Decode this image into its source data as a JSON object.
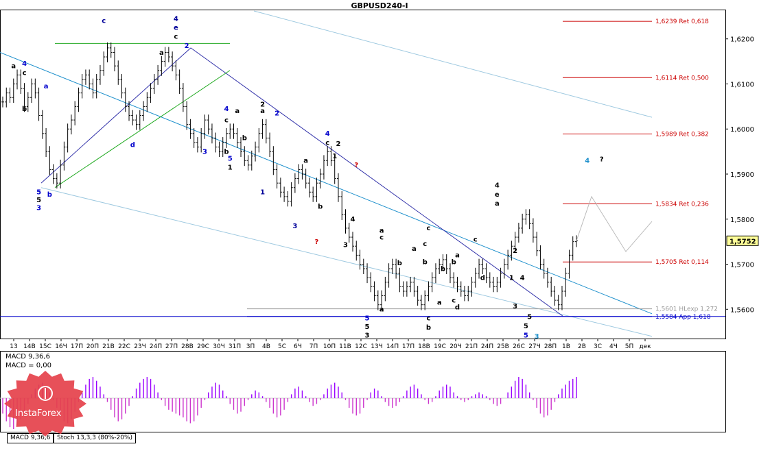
{
  "title": "GBPUSD240-I",
  "chart_data": {
    "type": "line",
    "symbol": "GBPUSD240-I",
    "timeframe": "H4",
    "last_price": "1,5752",
    "ylim": [
      1.5535,
      1.6265
    ],
    "y_ticks": [
      "1,6200",
      "1,6100",
      "1,6000",
      "1,5900",
      "1,5800",
      "1,5700",
      "1,5600"
    ],
    "x_ticks": [
      "13",
      "14В",
      "15С",
      "16Ч",
      "17П",
      "20П",
      "21В",
      "22С",
      "23Ч",
      "24П",
      "27П",
      "28В",
      "29С",
      "30Ч",
      "31П",
      "3П",
      "4В",
      "5С",
      "6Ч",
      "7П",
      "10П",
      "11В",
      "12С",
      "13Ч",
      "14П",
      "17П",
      "18В",
      "19С",
      "20Ч",
      "21П",
      "24П",
      "25В",
      "26С",
      "27Ч",
      "28П",
      "1В",
      "2В",
      "3С",
      "4Ч",
      "5П",
      "дек"
    ],
    "price_bars": [
      1.606,
      1.608,
      1.607,
      1.61,
      1.612,
      1.609,
      1.605,
      1.607,
      1.61,
      1.608,
      1.603,
      1.599,
      1.595,
      1.591,
      1.589,
      1.588,
      1.592,
      1.596,
      1.6,
      1.602,
      1.605,
      1.608,
      1.611,
      1.612,
      1.61,
      1.608,
      1.611,
      1.613,
      1.616,
      1.618,
      1.617,
      1.614,
      1.611,
      1.608,
      1.605,
      1.603,
      1.602,
      1.601,
      1.603,
      1.605,
      1.607,
      1.609,
      1.611,
      1.613,
      1.615,
      1.617,
      1.616,
      1.614,
      1.612,
      1.609,
      1.605,
      1.601,
      1.599,
      1.597,
      1.596,
      1.599,
      1.602,
      1.6,
      1.598,
      1.596,
      1.595,
      1.597,
      1.599,
      1.6,
      1.599,
      1.597,
      1.595,
      1.593,
      1.592,
      1.594,
      1.596,
      1.599,
      1.601,
      1.598,
      1.595,
      1.591,
      1.588,
      1.586,
      1.585,
      1.584,
      1.587,
      1.589,
      1.591,
      1.59,
      1.588,
      1.586,
      1.585,
      1.588,
      1.59,
      1.593,
      1.595,
      1.593,
      1.589,
      1.585,
      1.581,
      1.578,
      1.576,
      1.574,
      1.572,
      1.57,
      1.569,
      1.567,
      1.565,
      1.563,
      1.561,
      1.563,
      1.566,
      1.569,
      1.57,
      1.568,
      1.565,
      1.564,
      1.565,
      1.566,
      1.564,
      1.562,
      1.561,
      1.563,
      1.565,
      1.567,
      1.569,
      1.57,
      1.571,
      1.569,
      1.567,
      1.566,
      1.565,
      1.564,
      1.563,
      1.564,
      1.566,
      1.568,
      1.57,
      1.569,
      1.567,
      1.566,
      1.565,
      1.566,
      1.568,
      1.57,
      1.572,
      1.574,
      1.576,
      1.578,
      1.58,
      1.581,
      1.579,
      1.576,
      1.573,
      1.57,
      1.568,
      1.566,
      1.564,
      1.562,
      1.561,
      1.564,
      1.568,
      1.572,
      1.575,
      1.5752
    ],
    "macd_values": [
      -0.0008,
      -0.0012,
      -0.0015,
      -0.0016,
      -0.0014,
      -0.0011,
      -0.0007,
      -0.0003,
      0.0002,
      0.0005,
      0.0007,
      0.0008,
      0.0006,
      0.0003,
      -0.0001,
      -0.0005,
      -0.0009,
      -0.0012,
      -0.0013,
      -0.0011,
      -0.0007,
      -0.0002,
      0.0003,
      0.0007,
      0.001,
      0.0011,
      0.0009,
      0.0006,
      0.0002,
      -0.0002,
      -0.0006,
      -0.001,
      -0.0012,
      -0.0011,
      -0.0008,
      -0.0004,
      0.0001,
      0.0005,
      0.0008,
      0.001,
      0.0011,
      0.001,
      0.0007,
      0.0003,
      -0.0001,
      -0.0004,
      -0.0006,
      -0.0007,
      -0.0008,
      -0.0009,
      -0.001,
      -0.0012,
      -0.0013,
      -0.0012,
      -0.0009,
      -0.0005,
      -0.0001,
      0.0003,
      0.0006,
      0.0008,
      0.0007,
      0.0004,
      0.0001,
      -0.0003,
      -0.0006,
      -0.0008,
      -0.0007,
      -0.0004,
      -0.0001,
      0.0002,
      0.0004,
      0.0003,
      0.0001,
      -0.0002,
      -0.0005,
      -0.0008,
      -0.001,
      -0.0009,
      -0.0006,
      -0.0002,
      0.0002,
      0.0005,
      0.0006,
      0.0004,
      0.0001,
      -0.0002,
      -0.0004,
      -0.0003,
      -0.0001,
      0.0002,
      0.0005,
      0.0007,
      0.0008,
      0.0006,
      0.0003,
      -0.0001,
      -0.0005,
      -0.0008,
      -0.0009,
      -0.0008,
      -0.0005,
      -0.0001,
      0.0003,
      0.0005,
      0.0004,
      0.0001,
      -0.0002,
      -0.0004,
      -0.0005,
      -0.0004,
      -0.0002,
      0.0001,
      0.0004,
      0.0006,
      0.0007,
      0.0005,
      0.0002,
      -0.0001,
      -0.0003,
      -0.0002,
      0.0001,
      0.0004,
      0.0006,
      0.0007,
      0.0006,
      0.0003,
      0.0001,
      -0.0001,
      -0.0002,
      -0.0001,
      0.0001,
      0.0002,
      0.0003,
      0.0002,
      0.0001,
      -0.0001,
      -0.0003,
      -0.0004,
      -0.0003,
      0.0,
      0.0003,
      0.0006,
      0.0009,
      0.0011,
      0.001,
      0.0007,
      0.0003,
      -0.0001,
      -0.0005,
      -0.0008,
      -0.001,
      -0.0009,
      -0.0006,
      -0.0002,
      0.0002,
      0.0005,
      0.0007,
      0.0009,
      0.001,
      0.0011
    ],
    "fib_levels": [
      {
        "price": 1.6239,
        "label": "1,6239 Ret 0,618",
        "color": "#cc0000"
      },
      {
        "price": 1.6114,
        "label": "1,6114 Ret 0,500",
        "color": "#cc0000"
      },
      {
        "price": 1.5989,
        "label": "1,5989 Ret 0,382",
        "color": "#cc0000"
      },
      {
        "price": 1.5834,
        "label": "1,5834 Ret 0,236",
        "color": "#cc0000"
      },
      {
        "price": 1.5705,
        "label": "1,5705 Ret 0,114",
        "color": "#cc0000"
      },
      {
        "price": 1.5601,
        "label": "1,5601 HLexp 1,272",
        "color": "#999999"
      },
      {
        "price": 1.5584,
        "label": "1,5584 App 1,618",
        "color": "#0000cc"
      }
    ],
    "wave_labels": [
      {
        "t": "c",
        "i": 28,
        "p": 1.6235,
        "c": "#000099"
      },
      {
        "t": "4",
        "i": 48,
        "p": 1.624,
        "c": "#000099"
      },
      {
        "t": "e",
        "i": 48,
        "p": 1.622,
        "c": "#000099"
      },
      {
        "t": "c",
        "i": 48,
        "p": 1.62,
        "c": "#000000"
      },
      {
        "t": "2",
        "i": 51,
        "p": 1.618,
        "c": "#0000cc"
      },
      {
        "t": "a",
        "i": 44,
        "p": 1.6165,
        "c": "#000000"
      },
      {
        "t": "4",
        "i": 6,
        "p": 1.614,
        "c": "#0000cc"
      },
      {
        "t": "a",
        "i": 3,
        "p": 1.6135,
        "c": "#000000"
      },
      {
        "t": "c",
        "i": 6,
        "p": 1.612,
        "c": "#000000"
      },
      {
        "t": "a",
        "i": 12,
        "p": 1.609,
        "c": "#0000cc"
      },
      {
        "t": "b",
        "i": 6,
        "p": 1.604,
        "c": "#000000"
      },
      {
        "t": "d",
        "i": 36,
        "p": 1.596,
        "c": "#0000cc"
      },
      {
        "t": "5",
        "i": 10,
        "p": 1.5855,
        "c": "#0000cc"
      },
      {
        "t": "5",
        "i": 10,
        "p": 1.5838,
        "c": "#000000"
      },
      {
        "t": "3",
        "i": 10,
        "p": 1.582,
        "c": "#0000cc"
      },
      {
        "t": "b",
        "i": 13,
        "p": 1.585,
        "c": "#0000cc"
      },
      {
        "t": "2",
        "i": 72,
        "p": 1.605,
        "c": "#000000"
      },
      {
        "t": "a",
        "i": 72,
        "p": 1.6035,
        "c": "#000000"
      },
      {
        "t": "2",
        "i": 76,
        "p": 1.603,
        "c": "#0000cc"
      },
      {
        "t": "4",
        "i": 62,
        "p": 1.604,
        "c": "#0000cc"
      },
      {
        "t": "a",
        "i": 65,
        "p": 1.6035,
        "c": "#000000"
      },
      {
        "t": "c",
        "i": 62,
        "p": 1.6015,
        "c": "#000000"
      },
      {
        "t": "b",
        "i": 67,
        "p": 1.5975,
        "c": "#000000"
      },
      {
        "t": "3",
        "i": 56,
        "p": 1.5945,
        "c": "#0000cc"
      },
      {
        "t": "5",
        "i": 63,
        "p": 1.593,
        "c": "#0000cc"
      },
      {
        "t": "1",
        "i": 63,
        "p": 1.591,
        "c": "#000000"
      },
      {
        "t": "b",
        "i": 62,
        "p": 1.5945,
        "c": "#000000"
      },
      {
        "t": "1",
        "i": 72,
        "p": 1.5855,
        "c": "#000099"
      },
      {
        "t": "3",
        "i": 81,
        "p": 1.578,
        "c": "#000099"
      },
      {
        "t": "?",
        "i": 87,
        "p": 1.5745,
        "c": "#cc0000"
      },
      {
        "t": "4",
        "i": 90,
        "p": 1.5985,
        "c": "#0000cc"
      },
      {
        "t": "c",
        "i": 90,
        "p": 1.5965,
        "c": "#000000"
      },
      {
        "t": "2",
        "i": 93,
        "p": 1.5962,
        "c": "#000000"
      },
      {
        "t": "a",
        "i": 84,
        "p": 1.5925,
        "c": "#000000"
      },
      {
        "t": "1",
        "i": 92,
        "p": 1.5935,
        "c": "#000000"
      },
      {
        "t": "?",
        "i": 98,
        "p": 1.5915,
        "c": "#cc0000"
      },
      {
        "t": "b",
        "i": 88,
        "p": 1.5823,
        "c": "#000000"
      },
      {
        "t": "4",
        "i": 97,
        "p": 1.5795,
        "c": "#000000"
      },
      {
        "t": "3",
        "i": 95,
        "p": 1.5738,
        "c": "#000000"
      },
      {
        "t": "a",
        "i": 105,
        "p": 1.577,
        "c": "#000000"
      },
      {
        "t": "c",
        "i": 105,
        "p": 1.5755,
        "c": "#000000"
      },
      {
        "t": "b",
        "i": 110,
        "p": 1.5698,
        "c": "#000000"
      },
      {
        "t": "a",
        "i": 105,
        "p": 1.5595,
        "c": "#000000"
      },
      {
        "t": "5",
        "i": 101,
        "p": 1.5575,
        "c": "#0000cc"
      },
      {
        "t": "5",
        "i": 101,
        "p": 1.5556,
        "c": "#000000"
      },
      {
        "t": "3",
        "i": 101,
        "p": 1.5537,
        "c": "#000000"
      },
      {
        "t": "a",
        "i": 114,
        "p": 1.573,
        "c": "#000000"
      },
      {
        "t": "b",
        "i": 117,
        "p": 1.57,
        "c": "#000000"
      },
      {
        "t": "c",
        "i": 118,
        "p": 1.5575,
        "c": "#000000"
      },
      {
        "t": "b",
        "i": 118,
        "p": 1.5555,
        "c": "#000000"
      },
      {
        "t": "c",
        "i": 118,
        "p": 1.5775,
        "c": "#000000"
      },
      {
        "t": "c",
        "i": 117,
        "p": 1.574,
        "c": "#000000"
      },
      {
        "t": "a",
        "i": 121,
        "p": 1.561,
        "c": "#000000"
      },
      {
        "t": "c",
        "i": 125,
        "p": 1.5615,
        "c": "#000000"
      },
      {
        "t": "d",
        "i": 126,
        "p": 1.56,
        "c": "#000000"
      },
      {
        "t": "b",
        "i": 122,
        "p": 1.5685,
        "c": "#000000"
      },
      {
        "t": "a",
        "i": 126,
        "p": 1.5715,
        "c": "#000000"
      },
      {
        "t": "b",
        "i": 125,
        "p": 1.57,
        "c": "#000000"
      },
      {
        "t": "c",
        "i": 131,
        "p": 1.575,
        "c": "#000000"
      },
      {
        "t": "d",
        "i": 133,
        "p": 1.5665,
        "c": "#000000"
      },
      {
        "t": "4",
        "i": 137,
        "p": 1.587,
        "c": "#000000"
      },
      {
        "t": "e",
        "i": 137,
        "p": 1.585,
        "c": "#000000"
      },
      {
        "t": "a",
        "i": 137,
        "p": 1.583,
        "c": "#000000"
      },
      {
        "t": "2",
        "i": 142,
        "p": 1.5725,
        "c": "#000000"
      },
      {
        "t": "1",
        "i": 141,
        "p": 1.5665,
        "c": "#000000"
      },
      {
        "t": "4",
        "i": 144,
        "p": 1.5665,
        "c": "#000000"
      },
      {
        "t": "3",
        "i": 142,
        "p": 1.5602,
        "c": "#000000"
      },
      {
        "t": "5",
        "i": 146,
        "p": 1.5578,
        "c": "#000000"
      },
      {
        "t": "5",
        "i": 145,
        "p": 1.5558,
        "c": "#000000"
      },
      {
        "t": "5",
        "i": 145,
        "p": 1.5537,
        "c": "#0000cc"
      },
      {
        "t": "3",
        "i": 148,
        "p": 1.5535,
        "c": "#1e90cc"
      },
      {
        "t": "4",
        "i": 162,
        "p": 1.5925,
        "c": "#1e90cc"
      },
      {
        "t": "?",
        "i": 166,
        "p": 1.5928,
        "c": "#000000"
      }
    ],
    "macd_label_1": "MACD 9,36,6",
    "macd_label_2": "MACD = 0,00",
    "tabs": [
      "MACD 9,36,6",
      "Stoch 13,3,3 (80%-20%)"
    ],
    "grid": false
  },
  "logo": {
    "text": "InstaForex",
    "color": "#e5414b"
  },
  "colors": {
    "wave_line": "#0000cc",
    "channel": "#1e90cc",
    "fib": "#cc0000",
    "macd_pos": "#9900ff",
    "macd_neg": "#cc33cc"
  }
}
